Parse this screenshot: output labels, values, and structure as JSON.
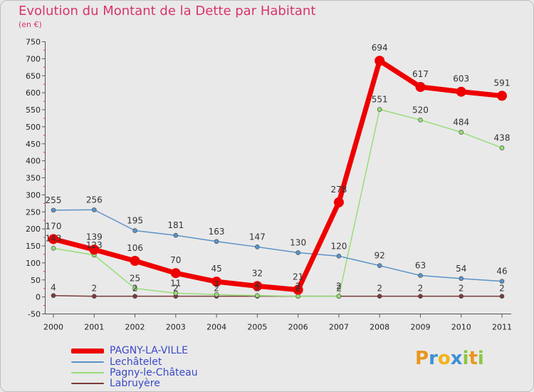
{
  "header": {
    "title": "Evolution du Montant de la Dette par Habitant",
    "subtitle": "(en €)"
  },
  "logo": {
    "text": "Proxiti",
    "letters": [
      {
        "ch": "P",
        "color": "#e8961e"
      },
      {
        "ch": "r",
        "color": "#3e8fd6"
      },
      {
        "ch": "o",
        "color": "#f2b319"
      },
      {
        "ch": "x",
        "color": "#3e8fd6"
      },
      {
        "ch": "i",
        "color": "#8cc63f"
      },
      {
        "ch": "t",
        "color": "#e8961e"
      },
      {
        "ch": "i",
        "color": "#8cc63f"
      }
    ]
  },
  "chart_data": {
    "type": "line",
    "title": "Evolution du Montant de la Dette par Habitant",
    "subtitle": "(en €)",
    "xlabel": "",
    "ylabel": "",
    "x": [
      "2000",
      "2001",
      "2002",
      "2003",
      "2004",
      "2005",
      "2006",
      "2007",
      "2008",
      "2009",
      "2010",
      "2011"
    ],
    "ylim": [
      -50,
      750
    ],
    "yticks": [
      -50,
      0,
      50,
      100,
      150,
      200,
      250,
      300,
      350,
      400,
      450,
      500,
      550,
      600,
      650,
      700,
      750
    ],
    "grid": false,
    "legend_position": "bottom-left",
    "series": [
      {
        "name": "PAGNY-LA-VILLE",
        "color": "#ee0000",
        "width": 7,
        "values": [
          170,
          139,
          106,
          70,
          45,
          32,
          21,
          278,
          694,
          617,
          603,
          591
        ]
      },
      {
        "name": "Lechâtelet",
        "color": "#5b93c7",
        "width": 1.5,
        "values": [
          255,
          256,
          195,
          181,
          163,
          147,
          130,
          120,
          92,
          63,
          54,
          46
        ]
      },
      {
        "name": "Pagny-le-Château",
        "color": "#97dd77",
        "width": 1.5,
        "values": [
          143,
          123,
          25,
          11,
          7,
          4,
          2,
          2,
          551,
          520,
          484,
          438
        ]
      },
      {
        "name": "Labruyère",
        "color": "#7a3b3b",
        "width": 1.5,
        "values": [
          4,
          2,
          2,
          2,
          2,
          2,
          2,
          2,
          2,
          2,
          2,
          2
        ]
      }
    ],
    "data_labels": {
      "PAGNY-LA-VILLE": [
        "170",
        "139",
        "106",
        "70",
        "45",
        "32",
        "21",
        "278",
        "694",
        "617",
        "603",
        "591"
      ],
      "Lechâtelet": [
        "255",
        "256",
        "195",
        "181",
        "163",
        "147",
        "130",
        "120",
        "92",
        "63",
        "54",
        "46"
      ],
      "Pagny-le-Château": [
        "143",
        "123",
        "25",
        "11",
        "7",
        "4",
        "2",
        "2",
        "551",
        "520",
        "484",
        "438"
      ],
      "Labruyère": [
        "4",
        "2",
        "2",
        "2",
        "2",
        "2",
        "2",
        "2",
        "2",
        "2",
        "2",
        "2"
      ]
    }
  }
}
